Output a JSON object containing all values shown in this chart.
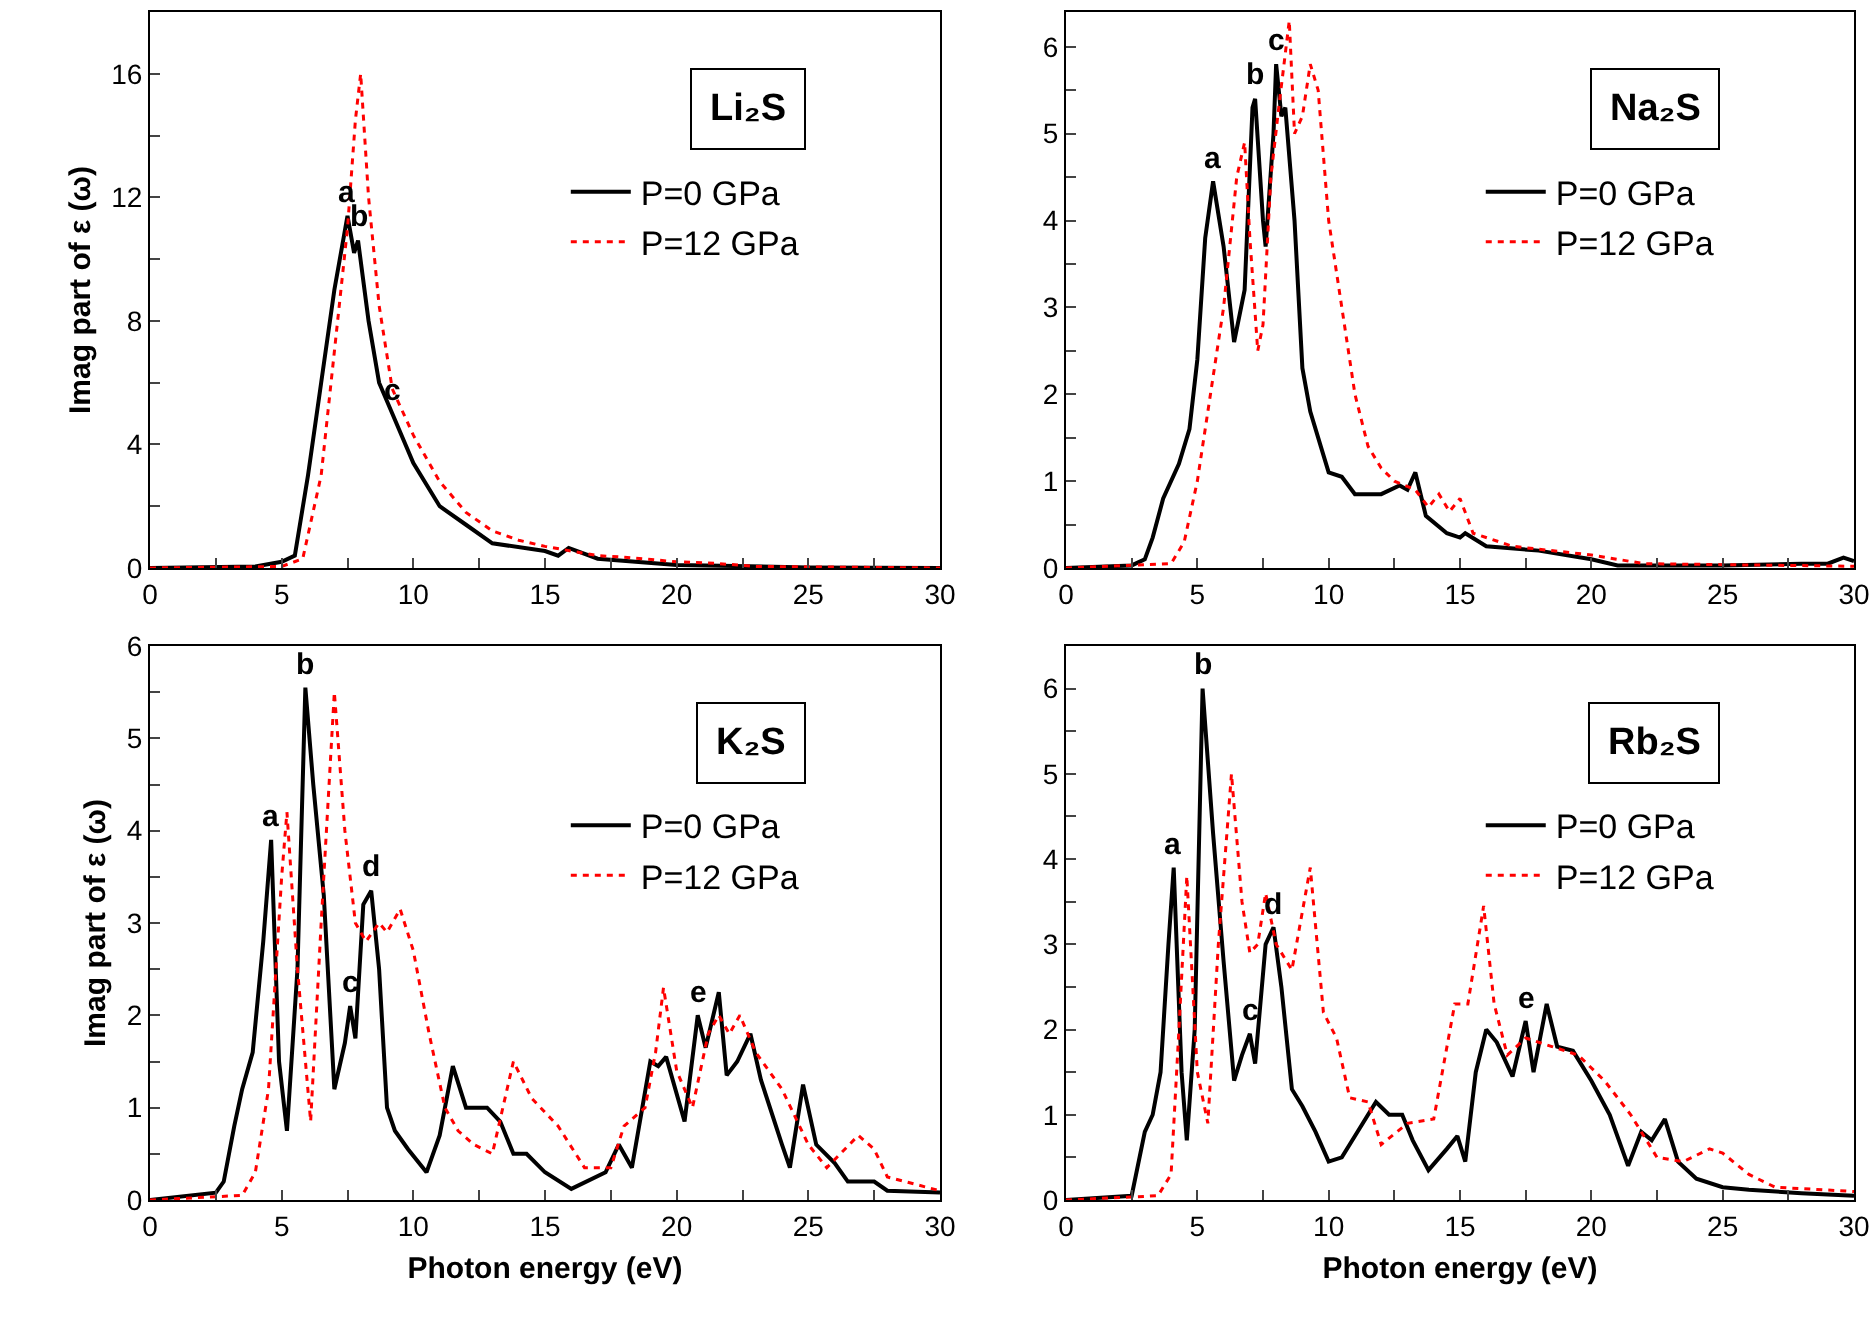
{
  "chart_data": [
    {
      "type": "line",
      "title": "Li₂S",
      "ylabel": "Imag part of ε (ω)",
      "legend": "top right",
      "grid": false,
      "xlim": [
        0,
        30
      ],
      "xticks": [
        0,
        {
          "value": 2.5,
          "label": null
        },
        5,
        {
          "value": 7.5,
          "label": null
        },
        10,
        {
          "value": 12.5,
          "label": null
        },
        15,
        {
          "value": 17.5,
          "label": null
        },
        20,
        {
          "value": 22.5,
          "label": null
        },
        25,
        {
          "value": 27.5,
          "label": null
        },
        30
      ],
      "ylim": [
        0,
        18
      ],
      "yticks": [
        0,
        {
          "value": 2,
          "label": null
        },
        4,
        {
          "value": 6,
          "label": null
        },
        8,
        {
          "value": 10,
          "label": null
        },
        12,
        {
          "value": 14,
          "label": null
        },
        16
      ],
      "series": [
        {
          "name": "P=0 GPa",
          "color": "#000000",
          "line_style": "solid",
          "x": [
            0,
            4,
            5,
            5.5,
            6,
            6.5,
            7,
            7.5,
            7.75,
            7.9,
            8.3,
            8.7,
            9.2,
            10,
            11,
            12,
            13,
            15,
            15.5,
            15.9,
            17,
            20,
            25,
            30
          ],
          "values": [
            0,
            0.05,
            0.2,
            0.4,
            3,
            6,
            9,
            11.4,
            10.2,
            10.6,
            8,
            6,
            5,
            3.4,
            2,
            1.4,
            0.8,
            0.55,
            0.4,
            0.65,
            0.3,
            0.1,
            0.02,
            0
          ]
        },
        {
          "name": "P=12 GPa",
          "color": "#ff0000",
          "line_style": "dotted",
          "x": [
            0,
            5,
            5.8,
            6.5,
            7,
            7.5,
            7.8,
            8,
            8.3,
            8.7,
            9.2,
            10,
            11,
            12,
            13,
            14,
            15,
            17,
            18,
            20,
            21.5,
            23,
            30
          ],
          "values": [
            0,
            0.05,
            0.3,
            3,
            7,
            11,
            14.5,
            16,
            12,
            8.5,
            5.8,
            4.3,
            2.8,
            1.8,
            1.2,
            0.9,
            0.7,
            0.4,
            0.35,
            0.2,
            0.15,
            0.05,
            0
          ]
        }
      ],
      "annotations": [
        {
          "text": "a",
          "x": 7.5,
          "y": 11.4
        },
        {
          "text": "b",
          "x": 7.9,
          "y": 10.6
        },
        {
          "text": "c",
          "x": 9.2,
          "y": 5
        }
      ]
    },
    {
      "type": "line",
      "title": "Na₂S",
      "legend": "top right",
      "grid": false,
      "xlim": [
        0,
        30
      ],
      "xticks": [
        0,
        {
          "value": 2.5,
          "label": null
        },
        5,
        {
          "value": 7.5,
          "label": null
        },
        10,
        {
          "value": 12.5,
          "label": null
        },
        15,
        {
          "value": 17.5,
          "label": null
        },
        20,
        {
          "value": 22.5,
          "label": null
        },
        25,
        {
          "value": 27.5,
          "label": null
        },
        30
      ],
      "ylim": [
        0,
        6.4
      ],
      "yticks": [
        0,
        {
          "value": 0.5,
          "label": null
        },
        1,
        {
          "value": 1.5,
          "label": null
        },
        2,
        {
          "value": 2.5,
          "label": null
        },
        3,
        {
          "value": 3.5,
          "label": null
        },
        4,
        {
          "value": 4.5,
          "label": null
        },
        5,
        {
          "value": 5.5,
          "label": null
        },
        6
      ],
      "series": [
        {
          "name": "P=0 GPa",
          "color": "#000000",
          "line_style": "solid",
          "x": [
            0,
            2.5,
            3,
            3.3,
            3.7,
            4.3,
            4.7,
            5,
            5.3,
            5.6,
            6,
            6.4,
            6.8,
            7.1,
            7.2,
            7.5,
            7.6,
            7.9,
            8,
            8.2,
            8.35,
            8.7,
            9,
            9.3,
            9.7,
            10,
            10.5,
            11,
            12,
            12.7,
            13,
            13.3,
            13.7,
            14.5,
            15,
            15.2,
            16,
            18,
            20,
            21,
            25,
            28,
            29,
            29.6,
            30
          ],
          "values": [
            0,
            0.03,
            0.1,
            0.35,
            0.8,
            1.2,
            1.6,
            2.4,
            3.8,
            4.45,
            3.7,
            2.6,
            3.2,
            5.3,
            5.4,
            4,
            3.7,
            5,
            5.8,
            5.2,
            5.3,
            4,
            2.3,
            1.8,
            1.4,
            1.1,
            1.05,
            0.85,
            0.85,
            0.95,
            0.9,
            1.1,
            0.6,
            0.4,
            0.35,
            0.4,
            0.25,
            0.2,
            0.1,
            0.03,
            0.03,
            0.05,
            0.05,
            0.12,
            0.08
          ]
        },
        {
          "name": "P=12 GPa",
          "color": "#ff0000",
          "line_style": "dotted",
          "x": [
            0,
            4,
            4.5,
            5,
            5.5,
            6,
            6.5,
            6.8,
            7,
            7.3,
            7.5,
            7.8,
            8.1,
            8.3,
            8.5,
            8.7,
            9,
            9.3,
            9.6,
            10,
            10.5,
            11,
            11.5,
            12,
            12.5,
            13.3,
            13.8,
            14.2,
            14.6,
            15,
            15.5,
            17,
            20,
            22,
            30
          ],
          "values": [
            0,
            0.05,
            0.3,
            1,
            2,
            3,
            4.5,
            4.9,
            3.8,
            2.5,
            2.8,
            4.5,
            5.3,
            5.8,
            6.3,
            5,
            5.2,
            5.8,
            5.5,
            4,
            3,
            2,
            1.4,
            1.15,
            1,
            0.9,
            0.7,
            0.85,
            0.65,
            0.8,
            0.4,
            0.25,
            0.15,
            0.05,
            0.02
          ]
        }
      ],
      "annotations": [
        {
          "text": "a",
          "x": 5.6,
          "y": 4.45
        },
        {
          "text": "b",
          "x": 7.2,
          "y": 5.4
        },
        {
          "text": "c",
          "x": 8,
          "y": 5.8
        }
      ]
    },
    {
      "type": "line",
      "title": "K₂S",
      "xlabel": "Photon energy (eV)",
      "ylabel": "Imag part of ε (ω)",
      "legend": "top right",
      "grid": false,
      "xlim": [
        0,
        30
      ],
      "xticks": [
        0,
        {
          "value": 2.5,
          "label": null
        },
        5,
        {
          "value": 7.5,
          "label": null
        },
        10,
        {
          "value": 12.5,
          "label": null
        },
        15,
        {
          "value": 17.5,
          "label": null
        },
        20,
        {
          "value": 22.5,
          "label": null
        },
        25,
        {
          "value": 27.5,
          "label": null
        },
        30
      ],
      "ylim": [
        0,
        6
      ],
      "yticks": [
        0,
        {
          "value": 0.5,
          "label": null
        },
        1,
        {
          "value": 1.5,
          "label": null
        },
        2,
        {
          "value": 2.5,
          "label": null
        },
        3,
        {
          "value": 3.5,
          "label": null
        },
        4,
        {
          "value": 4.5,
          "label": null
        },
        5,
        {
          "value": 5.5,
          "label": null
        },
        6
      ],
      "series": [
        {
          "name": "P=0 GPa",
          "color": "#000000",
          "line_style": "solid",
          "x": [
            0,
            2.5,
            2.8,
            3.2,
            3.5,
            3.9,
            4.3,
            4.6,
            4.9,
            5.2,
            5.6,
            5.9,
            6.2,
            6.6,
            7,
            7.4,
            7.6,
            7.8,
            8.1,
            8.4,
            8.7,
            9,
            9.3,
            9.8,
            10.5,
            11,
            11.5,
            12,
            12.8,
            13.3,
            13.8,
            14.3,
            15,
            16,
            17.3,
            17.8,
            18.3,
            19,
            19.3,
            19.6,
            20.3,
            20.8,
            21.1,
            21.6,
            21.9,
            22.3,
            22.8,
            23.2,
            24,
            24.3,
            24.8,
            25.3,
            26,
            26.5,
            27.5,
            28,
            30
          ],
          "values": [
            0,
            0.08,
            0.2,
            0.8,
            1.2,
            1.6,
            2.8,
            3.9,
            1.5,
            0.75,
            2.5,
            5.55,
            4.5,
            3.3,
            1.2,
            1.7,
            2.1,
            1.75,
            3.2,
            3.35,
            2.5,
            1,
            0.75,
            0.55,
            0.3,
            0.7,
            1.45,
            1,
            1,
            0.85,
            0.5,
            0.5,
            0.3,
            0.12,
            0.3,
            0.6,
            0.35,
            1.5,
            1.45,
            1.55,
            0.85,
            2,
            1.65,
            2.25,
            1.35,
            1.5,
            1.8,
            1.3,
            0.6,
            0.35,
            1.25,
            0.6,
            0.4,
            0.2,
            0.2,
            0.1,
            0.08
          ]
        },
        {
          "name": "P=12 GPa",
          "color": "#ff0000",
          "line_style": "dotted",
          "x": [
            0,
            3.5,
            4,
            4.5,
            5,
            5.2,
            5.6,
            6.1,
            6.5,
            7,
            7.4,
            7.8,
            8.2,
            8.7,
            9,
            9.5,
            10,
            10.6,
            11.2,
            11.7,
            12.3,
            13,
            13.8,
            14.5,
            15.5,
            16.5,
            17.5,
            18,
            18.8,
            19.2,
            19.5,
            20,
            20.6,
            21.2,
            21.6,
            22,
            22.4,
            23,
            24,
            25,
            25.7,
            26.9,
            27.5,
            28,
            30
          ],
          "values": [
            0,
            0.05,
            0.3,
            1.2,
            3.5,
            4.2,
            2.5,
            0.85,
            3,
            5.5,
            4,
            3,
            2.8,
            3,
            2.9,
            3.15,
            2.7,
            1.8,
            1,
            0.75,
            0.6,
            0.5,
            1.5,
            1.1,
            0.8,
            0.35,
            0.35,
            0.8,
            1,
            1.6,
            2.3,
            1.4,
            1,
            1.8,
            2,
            1.8,
            2,
            1.6,
            1.2,
            0.6,
            0.35,
            0.7,
            0.55,
            0.25,
            0.1
          ]
        }
      ],
      "annotations": [
        {
          "text": "a",
          "x": 4.6,
          "y": 3.9
        },
        {
          "text": "b",
          "x": 5.9,
          "y": 5.55
        },
        {
          "text": "c",
          "x": 7.6,
          "y": 2.1
        },
        {
          "text": "d",
          "x": 8.4,
          "y": 3.35
        },
        {
          "text": "e",
          "x": 20.8,
          "y": 2
        }
      ]
    },
    {
      "type": "line",
      "title": "Rb₂S",
      "xlabel": "Photon energy (eV)",
      "legend": "top right",
      "grid": false,
      "xlim": [
        0,
        30
      ],
      "xticks": [
        0,
        {
          "value": 2.5,
          "label": null
        },
        5,
        {
          "value": 7.5,
          "label": null
        },
        10,
        {
          "value": 12.5,
          "label": null
        },
        15,
        {
          "value": 17.5,
          "label": null
        },
        20,
        {
          "value": 22.5,
          "label": null
        },
        25,
        {
          "value": 27.5,
          "label": null
        },
        30
      ],
      "ylim": [
        0,
        6.5
      ],
      "yticks": [
        0,
        {
          "value": 0.5,
          "label": null
        },
        1,
        {
          "value": 1.5,
          "label": null
        },
        2,
        {
          "value": 2.5,
          "label": null
        },
        3,
        {
          "value": 3.5,
          "label": null
        },
        4,
        {
          "value": 4.5,
          "label": null
        },
        5,
        {
          "value": 5.5,
          "label": null
        },
        6
      ],
      "series": [
        {
          "name": "P=0 GPa",
          "color": "#000000",
          "line_style": "solid",
          "x": [
            0,
            2.5,
            3,
            3.3,
            3.6,
            3.9,
            4.1,
            4.4,
            4.6,
            4.9,
            5.2,
            5.6,
            6,
            6.4,
            6.7,
            7,
            7.2,
            7.6,
            7.9,
            8.2,
            8.6,
            9,
            9.5,
            10,
            10.5,
            11.2,
            11.8,
            12.3,
            12.8,
            13.2,
            13.8,
            14.5,
            14.9,
            15.2,
            15.6,
            16,
            16.4,
            17,
            17.5,
            17.8,
            18.3,
            18.7,
            19.3,
            20,
            20.7,
            21.4,
            21.9,
            22.3,
            22.8,
            23.3,
            24,
            25,
            26,
            28,
            30
          ],
          "values": [
            0,
            0.05,
            0.8,
            1,
            1.5,
            3,
            3.9,
            1.5,
            0.7,
            2,
            6,
            4.3,
            2.8,
            1.4,
            1.7,
            1.95,
            1.6,
            3,
            3.2,
            2.5,
            1.3,
            1.1,
            0.8,
            0.45,
            0.5,
            0.85,
            1.15,
            1,
            1,
            0.7,
            0.35,
            0.6,
            0.75,
            0.45,
            1.5,
            2,
            1.85,
            1.45,
            2.1,
            1.5,
            2.3,
            1.8,
            1.75,
            1.4,
            1,
            0.4,
            0.8,
            0.7,
            0.95,
            0.45,
            0.25,
            0.15,
            0.12,
            0.08,
            0.05
          ]
        },
        {
          "name": "P=12 GPa",
          "color": "#ff0000",
          "line_style": "dotted",
          "x": [
            0,
            3.5,
            4,
            4.3,
            4.6,
            5,
            5.4,
            5.8,
            6.3,
            6.7,
            7,
            7.3,
            7.6,
            8,
            8.6,
            9.3,
            9.8,
            10.3,
            10.8,
            11.5,
            12,
            13,
            14,
            14.8,
            15.3,
            15.9,
            16.3,
            16.8,
            17.5,
            18.5,
            19.5,
            20.5,
            21.5,
            22.5,
            23.5,
            24.5,
            25,
            26,
            27,
            30
          ],
          "values": [
            0,
            0.05,
            0.3,
            2,
            3.8,
            1.5,
            0.9,
            3,
            5,
            3.5,
            2.9,
            3,
            3.6,
            3,
            2.7,
            3.9,
            2.2,
            1.9,
            1.2,
            1.15,
            0.65,
            0.9,
            0.95,
            2.3,
            2.3,
            3.45,
            2.3,
            1.7,
            1.9,
            1.8,
            1.7,
            1.4,
            1,
            0.5,
            0.45,
            0.6,
            0.55,
            0.3,
            0.15,
            0.1
          ]
        }
      ],
      "annotations": [
        {
          "text": "a",
          "x": 4.1,
          "y": 3.9
        },
        {
          "text": "b",
          "x": 5.2,
          "y": 6
        },
        {
          "text": "c",
          "x": 7,
          "y": 1.95
        },
        {
          "text": "d",
          "x": 7.9,
          "y": 3.2
        },
        {
          "text": "e",
          "x": 17.5,
          "y": 2.1
        }
      ]
    }
  ]
}
